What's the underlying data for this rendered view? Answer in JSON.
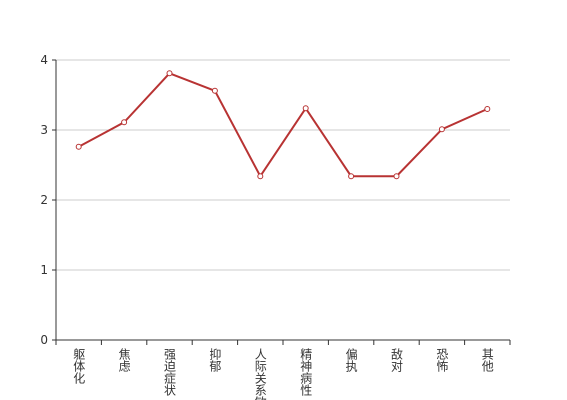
{
  "chart_data": {
    "type": "line",
    "categories": [
      "躯体化",
      "焦虑",
      "强迫症状",
      "抑郁",
      "人际关系敏感",
      "精神病性",
      "偏执",
      "敌对",
      "恐怖",
      "其他"
    ],
    "series": [
      {
        "name": null,
        "color": "#b83333",
        "values": [
          2.76,
          3.11,
          3.81,
          3.56,
          2.34,
          3.31,
          2.34,
          2.34,
          3.01,
          3.3
        ]
      }
    ],
    "ylim": [
      0,
      4
    ],
    "yticks": [
      0,
      1,
      2,
      3,
      4
    ],
    "grid": true
  }
}
